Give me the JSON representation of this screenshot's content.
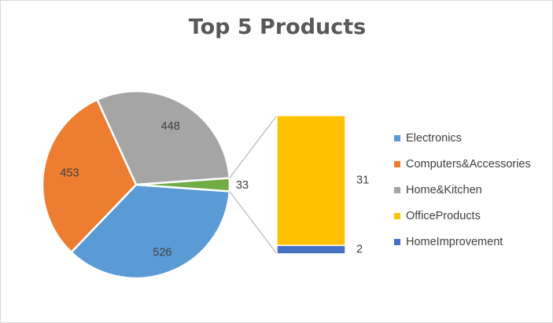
{
  "chart_data": {
    "type": "pie",
    "subtype": "bar-of-pie",
    "title": "Top 5 Products",
    "categories": [
      "Electronics",
      "Computers&Accessories",
      "Home&Kitchen",
      "OfficeProducts",
      "HomeImprovement"
    ],
    "values": [
      526,
      453,
      448,
      31,
      2
    ],
    "pie_labels": [
      "526",
      "453",
      "448",
      "33"
    ],
    "other_slice_value": 33,
    "secondary_bar": {
      "categories": [
        "OfficeProducts",
        "HomeImprovement"
      ],
      "values": [
        31,
        2
      ]
    },
    "colors": {
      "Electronics": "#5b9bd5",
      "Computers&Accessories": "#ed7d31",
      "Home&Kitchen": "#a5a5a5",
      "OfficeProducts": "#ffc000",
      "HomeImprovement": "#4472c4",
      "Other": "#70ad47"
    },
    "legend_position": "right",
    "grid": false
  }
}
